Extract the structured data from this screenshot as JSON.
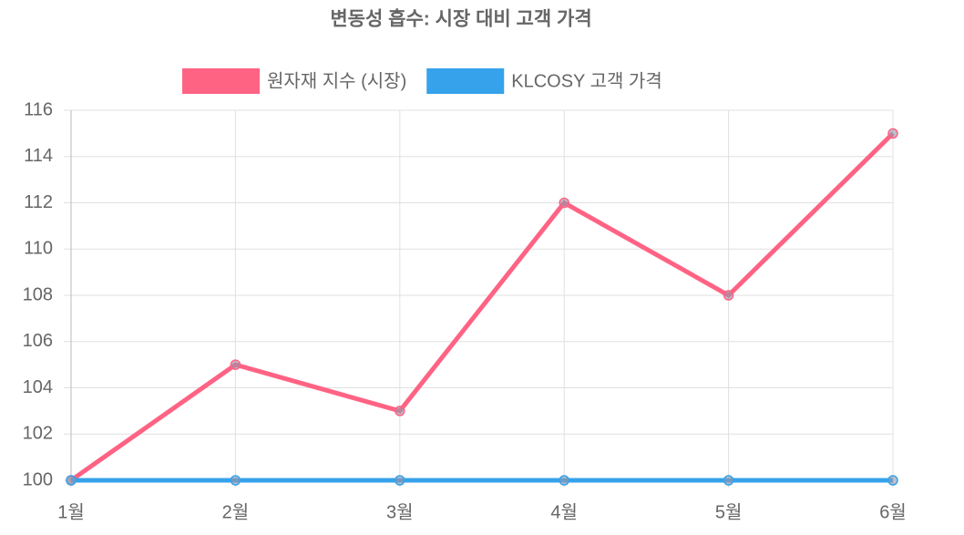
{
  "chart_data": {
    "type": "line",
    "title": "변동성 흡수: 시장 대비 고객 가격",
    "categories": [
      "1월",
      "2월",
      "3월",
      "4월",
      "5월",
      "6월"
    ],
    "series": [
      {
        "name": "원자재 지수 (시장)",
        "color": "#ff6384",
        "values": [
          100,
          105,
          103,
          112,
          108,
          115
        ]
      },
      {
        "name": "KLCOSY 고객 가격",
        "color": "#36a2eb",
        "values": [
          100,
          100,
          100,
          100,
          100,
          100
        ]
      }
    ],
    "ylim": [
      100,
      116
    ],
    "yticks": [
      100,
      102,
      104,
      106,
      108,
      110,
      112,
      114,
      116
    ],
    "grid": true
  }
}
